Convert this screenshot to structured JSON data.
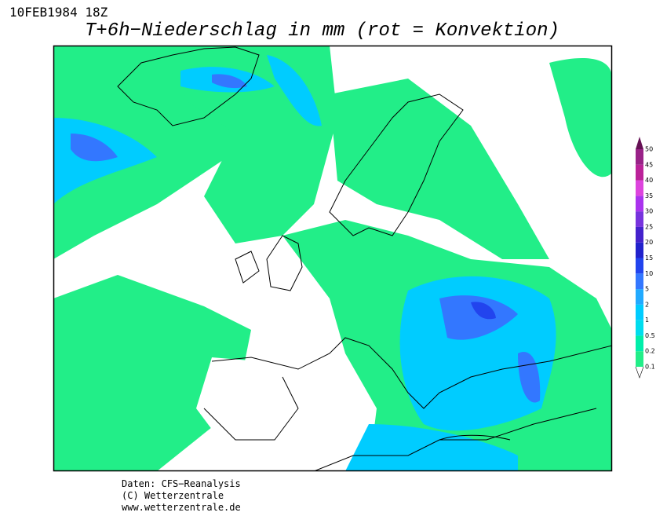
{
  "header": {
    "timestamp": "10FEB1984 18Z",
    "title": "T+6h−Niederschlag in mm (rot = Konvektion)"
  },
  "legend": {
    "levels": [
      {
        "label": "0.1",
        "color": "#22ee88"
      },
      {
        "label": "0.2",
        "color": "#00eeaa"
      },
      {
        "label": "0.5",
        "color": "#00ddee"
      },
      {
        "label": "1",
        "color": "#00ccff"
      },
      {
        "label": "2",
        "color": "#22aaff"
      },
      {
        "label": "5",
        "color": "#3377ff"
      },
      {
        "label": "10",
        "color": "#2244ee"
      },
      {
        "label": "15",
        "color": "#2222cc"
      },
      {
        "label": "20",
        "color": "#4422cc"
      },
      {
        "label": "25",
        "color": "#7733dd"
      },
      {
        "label": "30",
        "color": "#aa33ee"
      },
      {
        "label": "35",
        "color": "#dd44dd"
      },
      {
        "label": "40",
        "color": "#bb2299"
      },
      {
        "label": "45",
        "color": "#992288"
      },
      {
        "label": "50",
        "color": "#661155"
      }
    ]
  },
  "footer": {
    "lines": [
      "Daten: CFS−Reanalysis",
      "(C) Wetterzentrale",
      "www.wetterzentrale.de"
    ]
  }
}
